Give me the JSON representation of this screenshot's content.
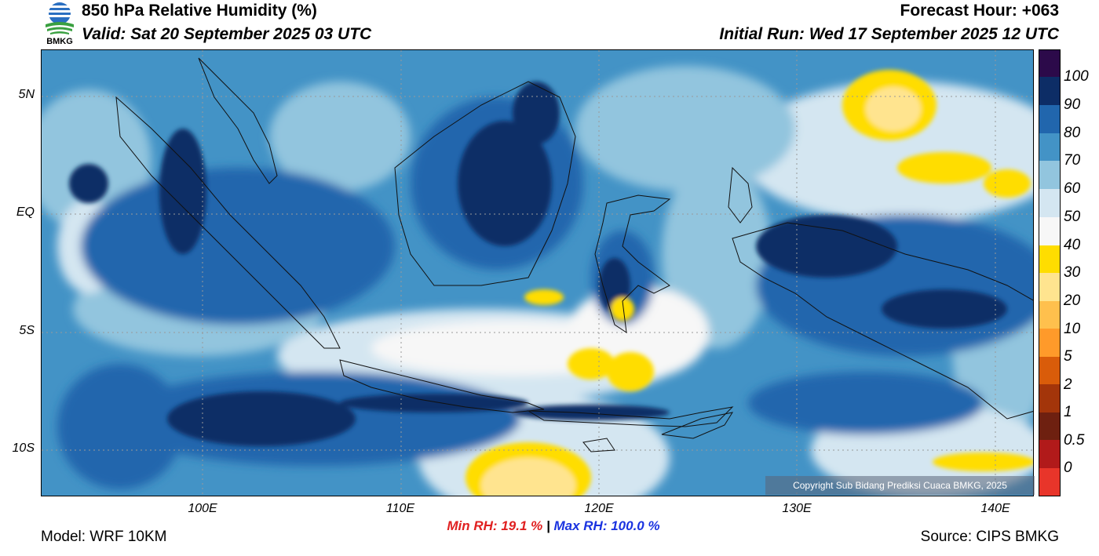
{
  "header": {
    "title": "850 hPa Relative Humidity (%)",
    "valid": "Valid: Sat 20 September 2025 03 UTC",
    "forecast_hour": "Forecast Hour: +063",
    "initial_run": "Initial Run: Wed 17 September 2025 12 UTC",
    "logo_text": "BMKG"
  },
  "axes": {
    "lat_labels": [
      "5N",
      "EQ",
      "5S",
      "10S"
    ],
    "lon_labels": [
      "100E",
      "110E",
      "120E",
      "130E",
      "140E"
    ]
  },
  "stats": {
    "min": "Min RH:  19.1 %",
    "sep": "|",
    "max": "Max RH: 100.0 %"
  },
  "footer": {
    "model": "Model: WRF 10KM",
    "source": "Source: CIPS BMKG",
    "copyright": "Copyright Sub Bidang Prediksi Cuaca BMKG, 2025"
  },
  "colorbar": {
    "labels": [
      "100",
      "90",
      "80",
      "70",
      "60",
      "50",
      "40",
      "30",
      "20",
      "10",
      "5",
      "2",
      "1",
      "0.5",
      "0"
    ],
    "colors": [
      "#2c0a4a",
      "#0d2d66",
      "#2166ad",
      "#4393c6",
      "#92c5de",
      "#d4e6f1",
      "#f7f7f7",
      "#ffdd00",
      "#ffe48f",
      "#ffc04d",
      "#ff9a2a",
      "#d95c0a",
      "#a3350a",
      "#6e2010",
      "#b11a1a",
      "#e8352a"
    ]
  },
  "colors": {
    "wet_high": "#0d2d66",
    "wet": "#2166ad",
    "moist": "#4393c6",
    "mid": "#92c5de",
    "pale": "#d4e6f1",
    "dry_white": "#f7f7f7",
    "dry_yellow": "#ffdd00",
    "dry_light": "#ffe48f"
  }
}
